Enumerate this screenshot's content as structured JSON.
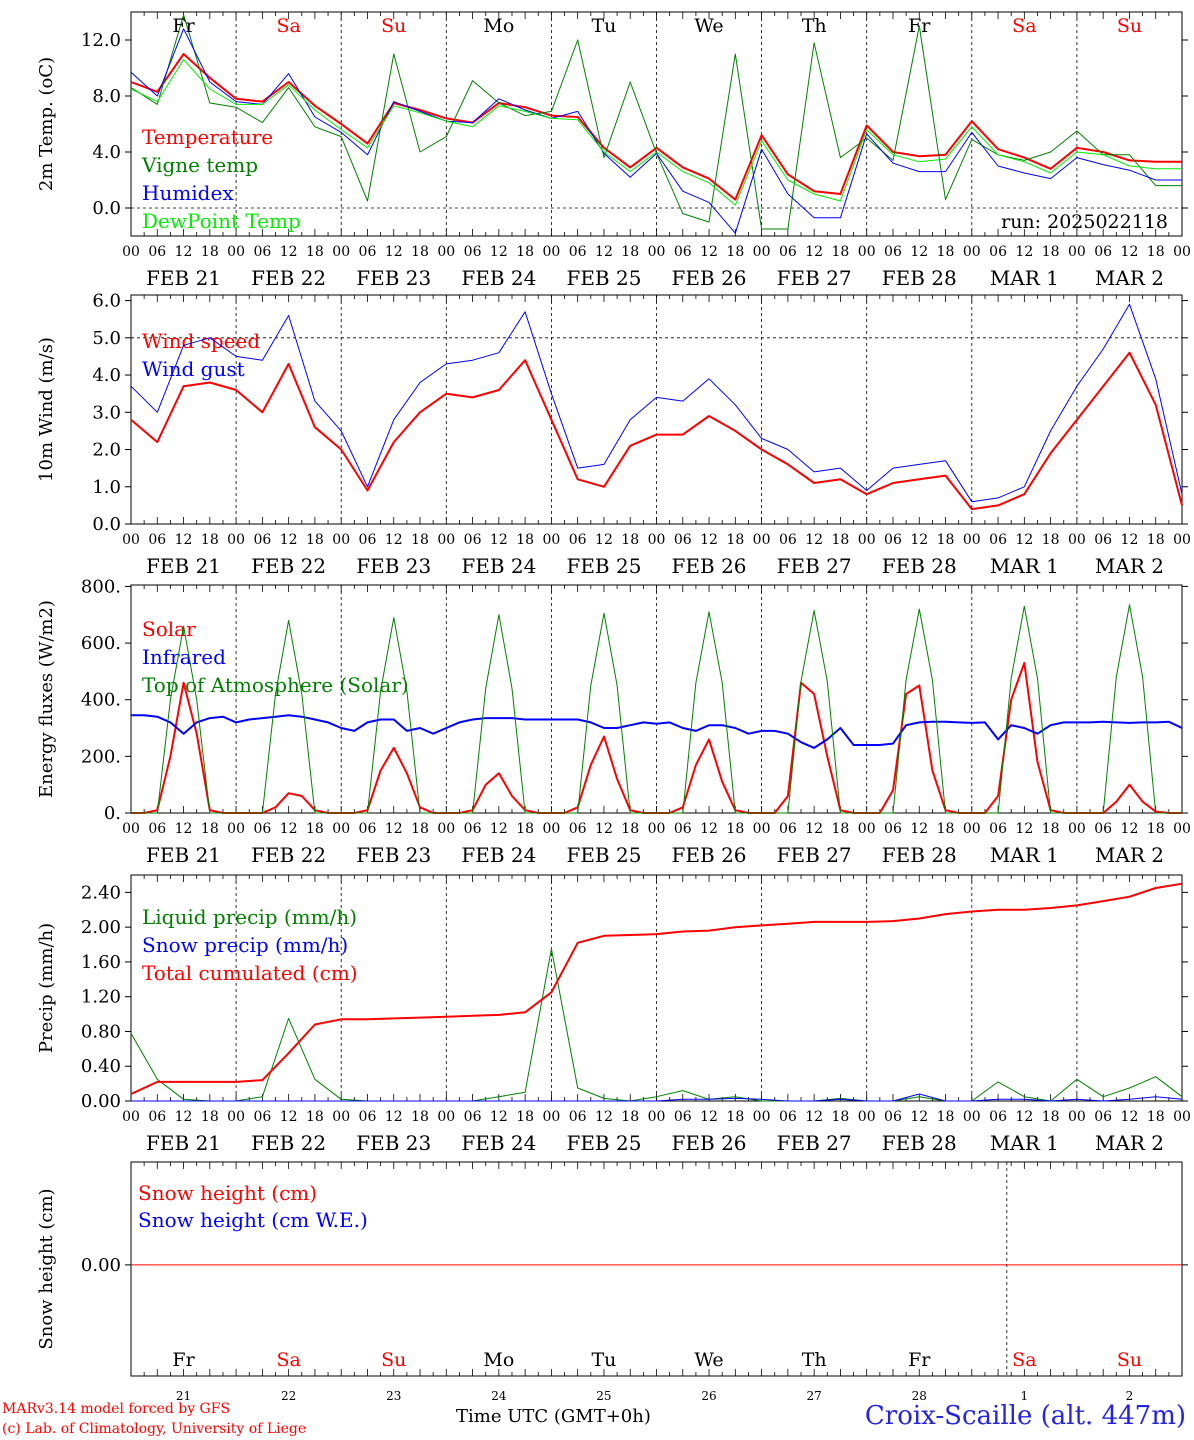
{
  "run_label": "run: 2025022118",
  "weekday_labels": [
    "Fr",
    "Sa",
    "Su",
    "Mo",
    "Tu",
    "We",
    "Th",
    "Fr",
    "Sa",
    "Su"
  ],
  "weekend_flags": [
    false,
    true,
    true,
    false,
    false,
    false,
    false,
    false,
    true,
    true
  ],
  "date_labels": [
    "FEB 21",
    "FEB 22",
    "FEB 23",
    "FEB 24",
    "FEB 25",
    "FEB 26",
    "FEB 27",
    "FEB 28",
    "MAR  1",
    "MAR  2"
  ],
  "day_numbers": [
    "21",
    "22",
    "23",
    "24",
    "25",
    "26",
    "27",
    "28",
    "1",
    "2"
  ],
  "hour_ticks": [
    "00",
    "06",
    "12",
    "18"
  ],
  "colors": {
    "red": "#ff0000",
    "green": "#008000",
    "blue": "#0000ff",
    "lightgreen": "#00ee00",
    "title_blue": "#2424e0"
  },
  "footer": {
    "model_line": "MARv3.14 model forced by GFS",
    "lab_line": "(c) Lab. of Climatology, University of Liege",
    "time_label": "Time UTC (GMT+0h)",
    "station": "Croix-Scaille (alt. 447m)"
  },
  "chart_data": [
    {
      "type": "line",
      "ylabel": "2m Temp. (oC)",
      "ylim": [
        -2,
        14
      ],
      "yticks": [
        0,
        4,
        8,
        12
      ],
      "ytick_labels": [
        "0.0",
        "4.0",
        "8.0",
        "12.0"
      ],
      "dashed_ref": 0,
      "x_unit": "hours since FEB 21 00 UTC",
      "x": [
        0,
        6,
        12,
        18,
        24,
        30,
        36,
        42,
        48,
        54,
        60,
        66,
        72,
        78,
        84,
        90,
        96,
        102,
        108,
        114,
        120,
        126,
        132,
        138,
        144,
        150,
        156,
        162,
        168,
        174,
        180,
        186,
        192,
        198,
        204,
        210,
        216,
        222,
        228,
        234,
        240
      ],
      "series": [
        {
          "name": "Temperature",
          "color": "#ff0000",
          "width": 2,
          "values": [
            9.0,
            8.3,
            11.0,
            9.3,
            7.8,
            7.6,
            9.0,
            7.3,
            6.0,
            4.6,
            7.5,
            7.0,
            6.4,
            6.1,
            7.5,
            7.2,
            6.6,
            6.5,
            4.3,
            2.9,
            4.3,
            2.9,
            2.1,
            0.6,
            5.2,
            2.4,
            1.2,
            1.0,
            5.9,
            4.0,
            3.7,
            3.8,
            6.2,
            4.2,
            3.6,
            2.8,
            4.3,
            4.0,
            3.4,
            3.3,
            3.3
          ]
        },
        {
          "name": "Vigne temp",
          "color": "#008000",
          "width": 1,
          "values": [
            8.6,
            7.4,
            13.8,
            7.5,
            7.2,
            6.1,
            8.6,
            5.8,
            5.1,
            0.5,
            11.0,
            4.0,
            5.1,
            9.1,
            7.5,
            6.6,
            6.9,
            12.0,
            3.6,
            9.0,
            3.9,
            -0.4,
            -1.0,
            11.0,
            -1.5,
            -1.5,
            11.8,
            3.6,
            5.0,
            3.4,
            13.0,
            0.6,
            4.9,
            3.8,
            3.4,
            4.0,
            5.5,
            3.8,
            3.8,
            1.6,
            1.6
          ]
        },
        {
          "name": "Humidex",
          "color": "#0000ff",
          "width": 1,
          "values": [
            9.7,
            8.0,
            12.8,
            9.0,
            7.6,
            7.4,
            9.6,
            6.5,
            5.4,
            3.8,
            7.6,
            6.9,
            6.2,
            6.1,
            7.8,
            7.0,
            6.4,
            6.9,
            3.9,
            2.2,
            3.9,
            1.2,
            0.4,
            -1.8,
            4.2,
            1.0,
            -0.7,
            -0.7,
            5.3,
            3.2,
            2.6,
            2.6,
            5.4,
            3.0,
            2.5,
            2.1,
            3.6,
            3.1,
            2.7,
            2.0,
            2.0
          ]
        },
        {
          "name": "DewPoint Temp",
          "color": "#00ee00",
          "width": 1,
          "values": [
            8.5,
            7.6,
            10.6,
            8.5,
            7.4,
            7.4,
            8.8,
            7.0,
            5.6,
            4.3,
            7.3,
            6.8,
            6.2,
            5.8,
            7.3,
            6.9,
            6.4,
            6.3,
            4.0,
            2.6,
            4.0,
            2.6,
            1.8,
            0.2,
            4.8,
            2.0,
            1.0,
            0.5,
            5.6,
            3.8,
            3.3,
            3.5,
            5.8,
            3.8,
            3.3,
            2.5,
            4.0,
            3.8,
            3.0,
            2.8,
            2.8
          ]
        }
      ]
    },
    {
      "type": "line",
      "ylabel": "10m Wind (m/s)",
      "ylim": [
        0,
        6
      ],
      "yticks": [
        0,
        1,
        2,
        3,
        4,
        5,
        6
      ],
      "ytick_labels": [
        "0.0",
        "1.0",
        "2.0",
        "3.0",
        "4.0",
        "5.0",
        "6.0"
      ],
      "dashed_ref": 5,
      "x_unit": "hours since FEB 21 00 UTC",
      "x": [
        0,
        6,
        12,
        18,
        24,
        30,
        36,
        42,
        48,
        54,
        60,
        66,
        72,
        78,
        84,
        90,
        96,
        102,
        108,
        114,
        120,
        126,
        132,
        138,
        144,
        150,
        156,
        162,
        168,
        174,
        180,
        186,
        192,
        198,
        204,
        210,
        216,
        222,
        228,
        234,
        240
      ],
      "series": [
        {
          "name": "Wind speed",
          "color": "#ff0000",
          "width": 2,
          "values": [
            2.8,
            2.2,
            3.7,
            3.8,
            3.6,
            3.0,
            4.3,
            2.6,
            2.0,
            0.9,
            2.2,
            3.0,
            3.5,
            3.4,
            3.6,
            4.4,
            2.8,
            1.2,
            1.0,
            2.1,
            2.4,
            2.4,
            2.9,
            2.5,
            2.0,
            1.6,
            1.1,
            1.2,
            0.8,
            1.1,
            1.2,
            1.3,
            0.4,
            0.5,
            0.8,
            1.9,
            2.8,
            3.7,
            4.6,
            3.2,
            0.5
          ]
        },
        {
          "name": "Wind gust",
          "color": "#0000ff",
          "width": 1,
          "values": [
            3.7,
            3.0,
            4.8,
            5.0,
            4.5,
            4.4,
            5.6,
            3.3,
            2.5,
            1.0,
            2.8,
            3.8,
            4.3,
            4.4,
            4.6,
            5.7,
            3.5,
            1.5,
            1.6,
            2.8,
            3.4,
            3.3,
            3.9,
            3.2,
            2.3,
            2.0,
            1.4,
            1.5,
            0.9,
            1.5,
            1.6,
            1.7,
            0.6,
            0.7,
            1.0,
            2.5,
            3.7,
            4.7,
            5.9,
            3.9,
            0.8
          ]
        }
      ]
    },
    {
      "type": "line",
      "ylabel": "Energy fluxes (W/m2)",
      "ylim": [
        0,
        800
      ],
      "yticks": [
        0,
        200,
        400,
        600,
        800
      ],
      "ytick_labels": [
        "0.",
        "200.",
        "400.",
        "600.",
        "800."
      ],
      "dashed_ref": null,
      "x_unit": "hours since FEB 21 00 UTC",
      "x": [
        0,
        3,
        6,
        9,
        12,
        15,
        18,
        21,
        24,
        27,
        30,
        33,
        36,
        39,
        42,
        45,
        48,
        51,
        54,
        57,
        60,
        63,
        66,
        69,
        72,
        75,
        78,
        81,
        84,
        87,
        90,
        93,
        96,
        99,
        102,
        105,
        108,
        111,
        114,
        117,
        120,
        123,
        126,
        129,
        132,
        135,
        138,
        141,
        144,
        147,
        150,
        153,
        156,
        159,
        162,
        165,
        168,
        171,
        174,
        177,
        180,
        183,
        186,
        189,
        192,
        195,
        198,
        201,
        204,
        207,
        210,
        213,
        216,
        219,
        222,
        225,
        228,
        231,
        234,
        237,
        240
      ],
      "series": [
        {
          "name": "Solar",
          "color": "#ff0000",
          "width": 2,
          "values": [
            0,
            0,
            10,
            200,
            460,
            280,
            10,
            0,
            0,
            0,
            0,
            20,
            70,
            60,
            10,
            0,
            0,
            0,
            10,
            150,
            230,
            140,
            20,
            0,
            0,
            0,
            10,
            100,
            140,
            60,
            10,
            0,
            0,
            0,
            20,
            170,
            270,
            120,
            10,
            0,
            0,
            0,
            20,
            170,
            260,
            110,
            10,
            0,
            0,
            0,
            60,
            460,
            420,
            200,
            10,
            0,
            0,
            0,
            80,
            420,
            450,
            150,
            10,
            0,
            0,
            0,
            60,
            400,
            530,
            180,
            10,
            0,
            0,
            0,
            0,
            40,
            100,
            40,
            5,
            0,
            0
          ]
        },
        {
          "name": "Infrared",
          "color": "#0000ff",
          "width": 2,
          "values": [
            345,
            345,
            340,
            320,
            280,
            320,
            335,
            340,
            320,
            330,
            335,
            340,
            345,
            340,
            330,
            320,
            300,
            290,
            320,
            330,
            330,
            290,
            300,
            280,
            300,
            320,
            330,
            335,
            335,
            335,
            330,
            330,
            330,
            330,
            330,
            320,
            300,
            300,
            310,
            320,
            315,
            320,
            300,
            290,
            310,
            310,
            300,
            280,
            290,
            290,
            280,
            250,
            230,
            260,
            300,
            240,
            240,
            240,
            245,
            310,
            320,
            322,
            322,
            320,
            318,
            320,
            260,
            310,
            300,
            280,
            310,
            320,
            320,
            320,
            322,
            320,
            318,
            320,
            320,
            322,
            300
          ]
        },
        {
          "name": "Top of Atmosphere (Solar)",
          "color": "#008000",
          "width": 1,
          "values": [
            0,
            0,
            0,
            400,
            660,
            400,
            0,
            0,
            0,
            0,
            0,
            420,
            680,
            420,
            0,
            0,
            0,
            0,
            0,
            430,
            690,
            430,
            0,
            0,
            0,
            0,
            0,
            440,
            700,
            440,
            0,
            0,
            0,
            0,
            0,
            450,
            705,
            450,
            0,
            0,
            0,
            0,
            0,
            460,
            710,
            460,
            0,
            0,
            0,
            0,
            0,
            465,
            715,
            465,
            0,
            0,
            0,
            0,
            0,
            470,
            720,
            470,
            0,
            0,
            0,
            0,
            0,
            475,
            730,
            475,
            0,
            0,
            0,
            0,
            0,
            480,
            735,
            480,
            0,
            0,
            0
          ]
        }
      ]
    },
    {
      "type": "line",
      "ylabel": "Precip (mm/h)",
      "ylim": [
        0,
        2.6
      ],
      "yticks": [
        0,
        0.4,
        0.8,
        1.2,
        1.6,
        2.0,
        2.4
      ],
      "ytick_labels": [
        "0.00",
        "0.40",
        "0.80",
        "1.20",
        "1.60",
        "2.00",
        "2.40"
      ],
      "dashed_ref": null,
      "x_unit": "hours since FEB 21 00 UTC",
      "x": [
        0,
        6,
        12,
        18,
        24,
        30,
        36,
        42,
        48,
        54,
        60,
        66,
        72,
        78,
        84,
        90,
        96,
        102,
        108,
        114,
        120,
        126,
        132,
        138,
        144,
        150,
        156,
        162,
        168,
        174,
        180,
        186,
        192,
        198,
        204,
        210,
        216,
        222,
        228,
        234,
        240
      ],
      "series": [
        {
          "name": "Liquid precip (mm/h)",
          "color": "#008000",
          "width": 1,
          "values": [
            0.78,
            0.25,
            0.02,
            0.0,
            0.0,
            0.05,
            0.95,
            0.25,
            0.02,
            0.0,
            0.0,
            0.0,
            0.0,
            0.0,
            0.05,
            0.1,
            1.75,
            0.15,
            0.03,
            0.0,
            0.05,
            0.12,
            0.02,
            0.05,
            0.0,
            0.0,
            0.0,
            0.03,
            0.0,
            0.0,
            0.05,
            0.0,
            0.0,
            0.22,
            0.05,
            0.0,
            0.25,
            0.05,
            0.15,
            0.28,
            0.05
          ]
        },
        {
          "name": "Snow precip (mm/h)",
          "color": "#0000ff",
          "width": 1,
          "values": [
            0,
            0,
            0,
            0,
            0,
            0,
            0,
            0,
            0,
            0,
            0,
            0,
            0,
            0,
            0,
            0,
            0,
            0,
            0,
            0,
            0,
            0.02,
            0.02,
            0.03,
            0.02,
            0,
            0,
            0.02,
            0,
            0,
            0.08,
            0,
            0,
            0.02,
            0.02,
            0,
            0.02,
            0,
            0.02,
            0.05,
            0.02
          ]
        },
        {
          "name": "Total cumulated (cm)",
          "color": "#ff0000",
          "width": 2,
          "values": [
            0.08,
            0.22,
            0.22,
            0.22,
            0.22,
            0.24,
            0.55,
            0.88,
            0.94,
            0.94,
            0.95,
            0.96,
            0.97,
            0.98,
            0.99,
            1.02,
            1.25,
            1.82,
            1.9,
            1.91,
            1.92,
            1.95,
            1.96,
            2.0,
            2.02,
            2.04,
            2.06,
            2.06,
            2.06,
            2.07,
            2.1,
            2.15,
            2.18,
            2.2,
            2.2,
            2.22,
            2.25,
            2.3,
            2.35,
            2.45,
            2.5
          ]
        }
      ]
    },
    {
      "type": "line",
      "ylabel": "Snow height (cm)",
      "ylim": [
        -1,
        1
      ],
      "yticks": [
        0
      ],
      "ytick_labels": [
        "0.00"
      ],
      "dashed_ref": null,
      "x_unit": "hours since FEB 21 00 UTC",
      "x": [
        0,
        240
      ],
      "series": [
        {
          "name": "Snow height (cm)",
          "color": "#ff0000",
          "width": 1,
          "values": [
            0,
            0
          ]
        },
        {
          "name": "Snow height (cm W.E.)",
          "color": "#0000ff",
          "width": 0,
          "values": [
            0,
            0
          ]
        }
      ]
    }
  ]
}
